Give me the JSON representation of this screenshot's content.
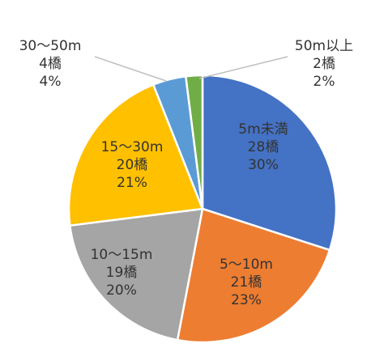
{
  "chart_data": {
    "type": "pie",
    "slices": [
      {
        "label": "5m未満",
        "count": "28橋",
        "pct": "30%",
        "value": 30,
        "color": "#4472C4"
      },
      {
        "label": "5～10m",
        "count": "21橋",
        "pct": "23%",
        "value": 23,
        "color": "#ED7D31"
      },
      {
        "label": "10～15m",
        "count": "19橋",
        "pct": "20%",
        "value": 20,
        "color": "#A5A5A5"
      },
      {
        "label": "15～30m",
        "count": "20橋",
        "pct": "21%",
        "value": 21,
        "color": "#FFC000"
      },
      {
        "label": "30～50m",
        "count": "4橋",
        "pct": "4%",
        "value": 4,
        "color": "#5B9BD5"
      },
      {
        "label": "50m以上",
        "count": "2橋",
        "pct": "2%",
        "value": 2,
        "color": "#70AD47"
      }
    ]
  }
}
